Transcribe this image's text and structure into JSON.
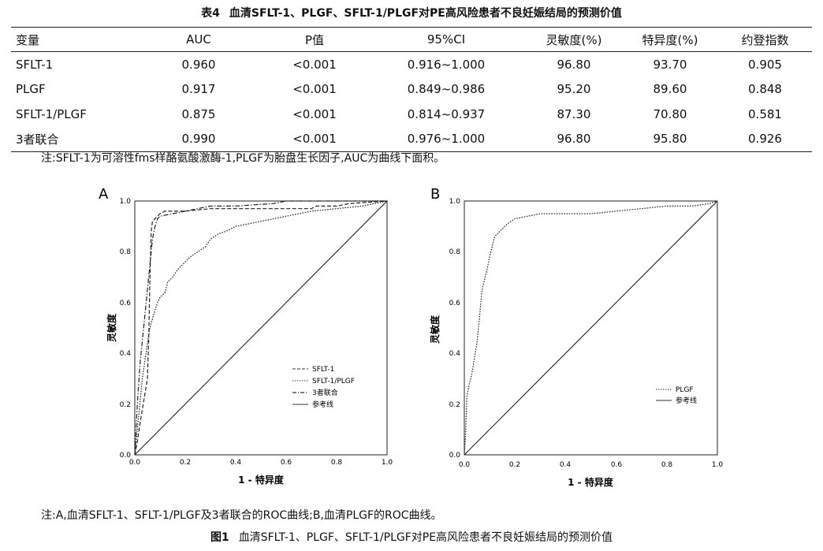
{
  "table": {
    "label": "表4",
    "title": "血清SFLT-1、PLGF、SFLT-1/PLGF对PE高风险患者不良妊娠结局的预测价值",
    "headers": [
      "变量",
      "AUC",
      "P值",
      "95%CI",
      "灵敏度(%)",
      "特异度(%)",
      "约登指数"
    ],
    "rows": [
      [
        "SFLT-1",
        "0.960",
        "<0.001",
        "0.916~1.000",
        "96.80",
        "93.70",
        "0.905"
      ],
      [
        "PLGF",
        "0.917",
        "<0.001",
        "0.849~0.986",
        "95.20",
        "89.60",
        "0.848"
      ],
      [
        "SFLT-1/PLGF",
        "0.875",
        "<0.001",
        "0.814~0.937",
        "87.30",
        "70.80",
        "0.581"
      ],
      [
        "3者联合",
        "0.990",
        "<0.001",
        "0.976~1.000",
        "96.80",
        "95.80",
        "0.926"
      ]
    ],
    "note": "注:SFLT-1为可溶性fms样酪氨酸激酶-1,PLGF为胎盘生长因子,AUC为曲线下面积。"
  },
  "figure": {
    "note": "注:A,血清SFLT-1、SFLT-1/PLGF及3者联合的ROC曲线;B,血清PLGF的ROC曲线。",
    "label": "图1",
    "caption": "血清SFLT-1、PLGF、SFLT-1/PLGF对PE高风险患者不良妊娠结局的预测价值"
  },
  "chart_data": [
    {
      "type": "line",
      "panel_label": "A",
      "xlabel": "1 - 特异度",
      "ylabel": "灵敏度",
      "xlim": [
        0,
        1
      ],
      "ylim": [
        0,
        1
      ],
      "ticks": [
        "0.0",
        "0.2",
        "0.4",
        "0.6",
        "0.8",
        "1.0"
      ],
      "legend_position": "bottom-right",
      "series": [
        {
          "name": "SFLT-1",
          "style": "dashed-long",
          "x": [
            0,
            0.01,
            0.02,
            0.03,
            0.04,
            0.05,
            0.055,
            0.06,
            0.065,
            0.07,
            0.08,
            0.09,
            0.1,
            0.12,
            0.15,
            0.2,
            0.3,
            0.5,
            0.7,
            0.72,
            0.8,
            0.85,
            1.0
          ],
          "y": [
            0,
            0.05,
            0.12,
            0.18,
            0.24,
            0.3,
            0.45,
            0.7,
            0.88,
            0.92,
            0.93,
            0.94,
            0.95,
            0.96,
            0.96,
            0.96,
            0.97,
            0.97,
            0.97,
            0.98,
            0.98,
            0.99,
            1.0
          ]
        },
        {
          "name": "SFLT-1/PLGF",
          "style": "dotted",
          "x": [
            0,
            0.01,
            0.02,
            0.03,
            0.05,
            0.06,
            0.08,
            0.09,
            0.1,
            0.12,
            0.13,
            0.15,
            0.17,
            0.2,
            0.22,
            0.25,
            0.28,
            0.3,
            0.33,
            0.36,
            0.4,
            0.5,
            0.6,
            0.7,
            0.8,
            0.9,
            1.0
          ],
          "y": [
            0,
            0.1,
            0.2,
            0.3,
            0.44,
            0.5,
            0.57,
            0.6,
            0.62,
            0.64,
            0.68,
            0.7,
            0.73,
            0.76,
            0.78,
            0.8,
            0.82,
            0.85,
            0.87,
            0.88,
            0.9,
            0.92,
            0.94,
            0.96,
            0.97,
            0.98,
            1.0
          ]
        },
        {
          "name": "3者联合",
          "style": "dash-dot",
          "x": [
            0,
            0.01,
            0.02,
            0.04,
            0.06,
            0.07,
            0.08,
            0.09,
            0.1,
            0.2,
            0.3,
            0.4,
            0.55,
            0.6,
            0.8,
            1.0
          ],
          "y": [
            0,
            0.2,
            0.35,
            0.55,
            0.75,
            0.85,
            0.9,
            0.93,
            0.94,
            0.96,
            0.98,
            0.98,
            0.99,
            1.0,
            1.0,
            1.0
          ]
        },
        {
          "name": "参考线",
          "style": "solid",
          "x": [
            0,
            1
          ],
          "y": [
            0,
            1
          ]
        }
      ]
    },
    {
      "type": "line",
      "panel_label": "B",
      "xlabel": "1 - 特异度",
      "ylabel": "灵敏度",
      "xlim": [
        0,
        1
      ],
      "ylim": [
        0,
        1
      ],
      "ticks": [
        "0.0",
        "0.2",
        "0.4",
        "0.6",
        "0.8",
        "1.0"
      ],
      "legend_position": "bottom-right",
      "series": [
        {
          "name": "PLGF",
          "style": "dotted",
          "x": [
            0,
            0.005,
            0.01,
            0.02,
            0.03,
            0.04,
            0.05,
            0.06,
            0.065,
            0.07,
            0.08,
            0.09,
            0.1,
            0.11,
            0.12,
            0.13,
            0.14,
            0.15,
            0.17,
            0.2,
            0.25,
            0.3,
            0.4,
            0.5,
            0.6,
            0.7,
            0.8,
            0.9,
            0.97,
            1.0
          ],
          "y": [
            0,
            0.08,
            0.23,
            0.28,
            0.32,
            0.38,
            0.44,
            0.54,
            0.6,
            0.65,
            0.69,
            0.73,
            0.78,
            0.82,
            0.86,
            0.87,
            0.88,
            0.89,
            0.91,
            0.93,
            0.94,
            0.95,
            0.95,
            0.95,
            0.96,
            0.97,
            0.98,
            0.98,
            0.99,
            1.0
          ]
        },
        {
          "name": "参考线",
          "style": "solid",
          "x": [
            0,
            1
          ],
          "y": [
            0,
            1
          ]
        }
      ]
    }
  ]
}
